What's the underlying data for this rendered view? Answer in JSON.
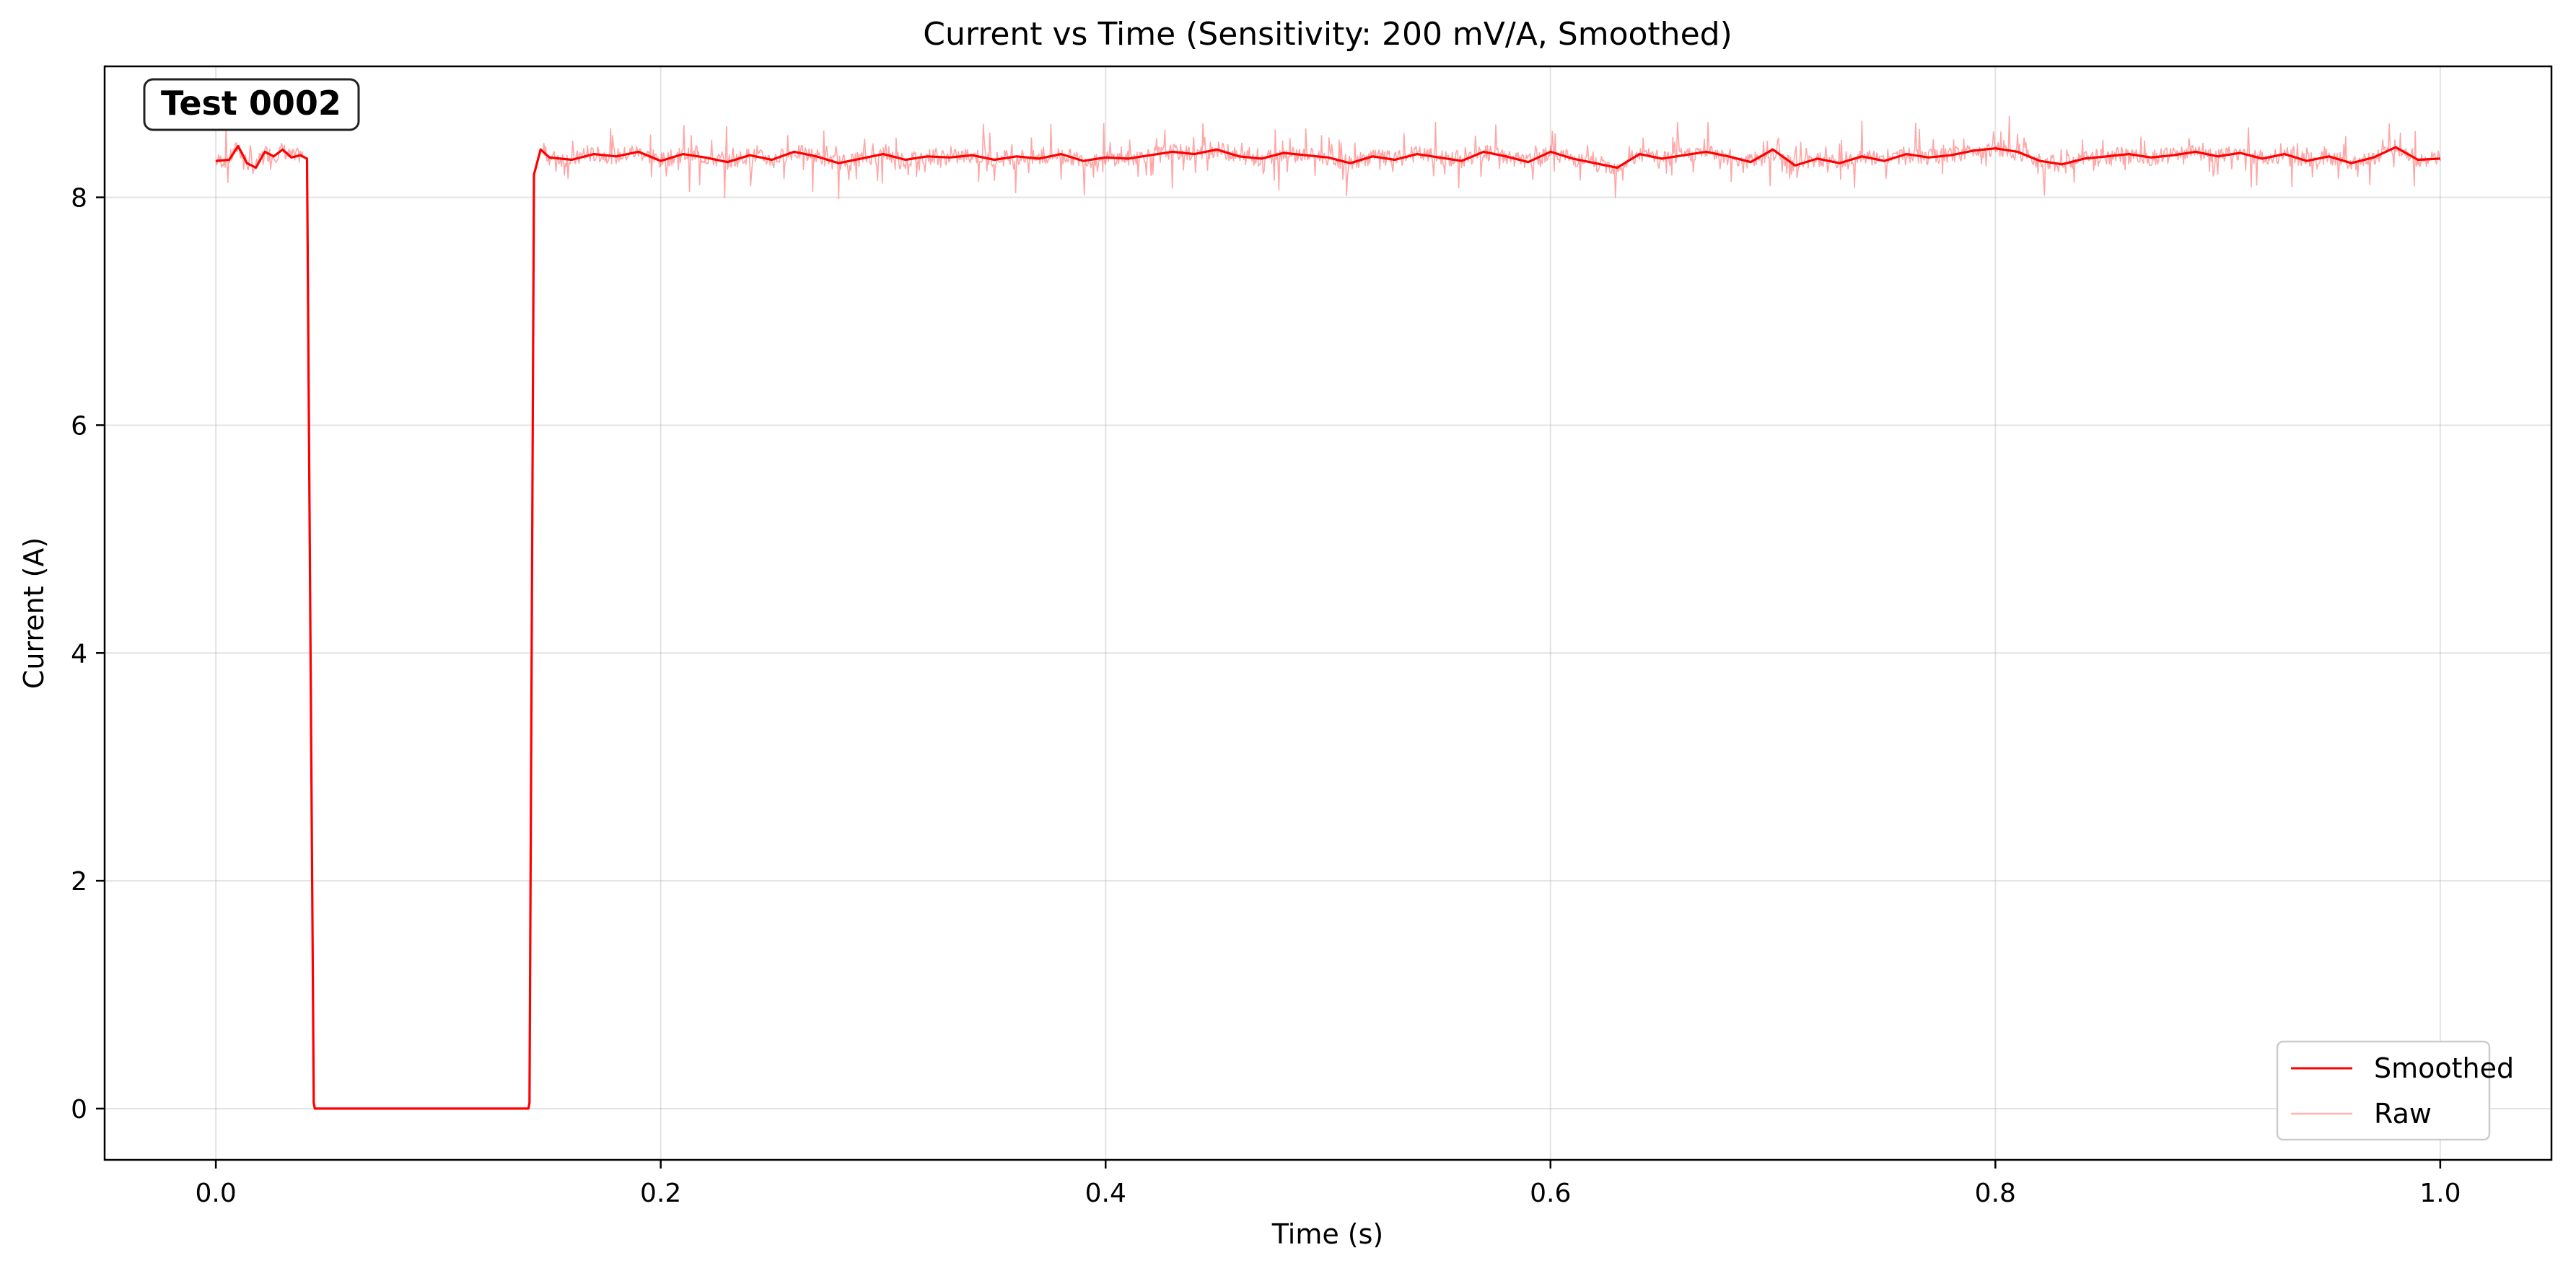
{
  "chart_data": {
    "type": "line",
    "title": "Current vs Time (Sensitivity: 200 mV/A, Smoothed)",
    "xlabel": "Time (s)",
    "ylabel": "Current (A)",
    "xlim": [
      -0.05,
      1.05
    ],
    "ylim": [
      -0.45,
      9.15
    ],
    "xticks": [
      0.0,
      0.2,
      0.4,
      0.6,
      0.8,
      1.0
    ],
    "xtick_labels": [
      "0.0",
      "0.2",
      "0.4",
      "0.6",
      "0.8",
      "1.0"
    ],
    "yticks": [
      0,
      2,
      4,
      6,
      8
    ],
    "ytick_labels": [
      "0",
      "2",
      "4",
      "6",
      "8"
    ],
    "grid": true,
    "legend_position": "bottom-right",
    "annotation": "Test 0002",
    "series": [
      {
        "name": "Smoothed",
        "color": "#ff0000",
        "x": [
          0.0,
          0.006,
          0.01,
          0.014,
          0.018,
          0.022,
          0.026,
          0.03,
          0.034,
          0.038,
          0.041,
          0.044,
          0.0445,
          0.1405,
          0.141,
          0.143,
          0.146,
          0.15,
          0.16,
          0.17,
          0.18,
          0.19,
          0.2,
          0.21,
          0.22,
          0.23,
          0.24,
          0.25,
          0.26,
          0.27,
          0.28,
          0.29,
          0.3,
          0.31,
          0.32,
          0.33,
          0.34,
          0.35,
          0.36,
          0.37,
          0.38,
          0.39,
          0.4,
          0.41,
          0.42,
          0.43,
          0.44,
          0.45,
          0.46,
          0.47,
          0.48,
          0.49,
          0.5,
          0.51,
          0.52,
          0.53,
          0.54,
          0.55,
          0.56,
          0.57,
          0.58,
          0.59,
          0.6,
          0.61,
          0.62,
          0.63,
          0.64,
          0.65,
          0.66,
          0.67,
          0.68,
          0.69,
          0.7,
          0.71,
          0.72,
          0.73,
          0.74,
          0.75,
          0.76,
          0.77,
          0.78,
          0.79,
          0.8,
          0.81,
          0.82,
          0.83,
          0.84,
          0.85,
          0.86,
          0.87,
          0.88,
          0.89,
          0.9,
          0.91,
          0.92,
          0.93,
          0.94,
          0.95,
          0.96,
          0.97,
          0.98,
          0.99,
          1.0
        ],
        "y": [
          8.32,
          8.33,
          8.45,
          8.3,
          8.26,
          8.4,
          8.36,
          8.42,
          8.35,
          8.37,
          8.34,
          0.05,
          0.0,
          0.0,
          0.05,
          8.2,
          8.42,
          8.35,
          8.33,
          8.38,
          8.36,
          8.4,
          8.32,
          8.38,
          8.35,
          8.31,
          8.37,
          8.33,
          8.4,
          8.36,
          8.3,
          8.34,
          8.38,
          8.33,
          8.36,
          8.35,
          8.37,
          8.33,
          8.36,
          8.34,
          8.38,
          8.32,
          8.35,
          8.34,
          8.37,
          8.4,
          8.38,
          8.42,
          8.36,
          8.34,
          8.39,
          8.37,
          8.35,
          8.3,
          8.36,
          8.33,
          8.38,
          8.35,
          8.32,
          8.4,
          8.36,
          8.31,
          8.4,
          8.34,
          8.3,
          8.26,
          8.38,
          8.34,
          8.37,
          8.4,
          8.36,
          8.31,
          8.42,
          8.28,
          8.34,
          8.3,
          8.36,
          8.32,
          8.38,
          8.35,
          8.37,
          8.41,
          8.43,
          8.4,
          8.32,
          8.29,
          8.34,
          8.36,
          8.38,
          8.35,
          8.37,
          8.4,
          8.36,
          8.39,
          8.34,
          8.38,
          8.32,
          8.36,
          8.3,
          8.35,
          8.44,
          8.33,
          8.34
        ]
      },
      {
        "name": "Raw",
        "color": "#ff0000"
      }
    ]
  }
}
